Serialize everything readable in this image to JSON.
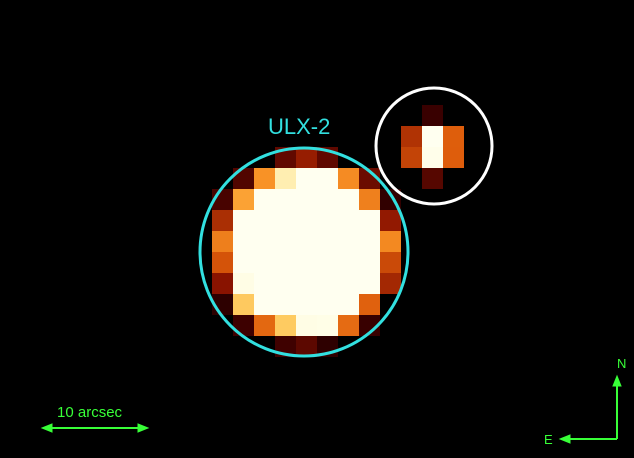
{
  "image": {
    "colormap": "heat (black-red-orange-yellow-white)",
    "background": "#000000"
  },
  "annotations": {
    "source_label": "ULX-2",
    "source_circle_color": "#32e0e0",
    "companion_circle_color": "#ffffff",
    "scale_bar_label": "10 arcsec",
    "compass_north": "N",
    "compass_east": "E",
    "overlay_color": "#38ff38"
  }
}
